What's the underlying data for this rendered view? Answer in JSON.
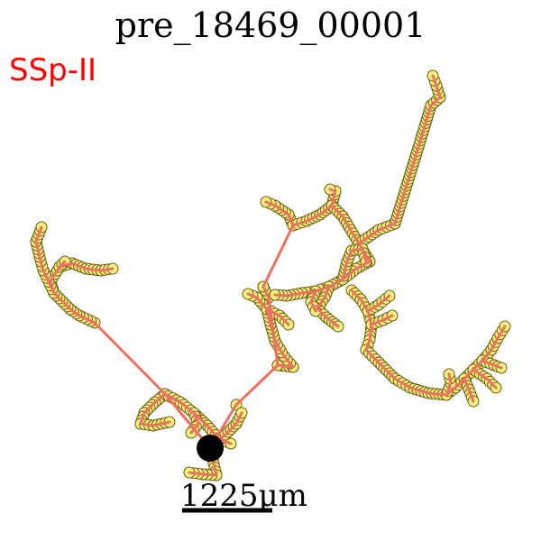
{
  "title": "pre_18469_00001",
  "region_label": "SSp-II",
  "scale_bar": {
    "label": "1225μm"
  },
  "colors": {
    "region": "#ff0000",
    "skeleton": "#f07060",
    "node_fill": "#f5f07a",
    "node_stroke": "#6f5a1a",
    "soma": "#000000",
    "scale_bar": "#000000"
  }
}
